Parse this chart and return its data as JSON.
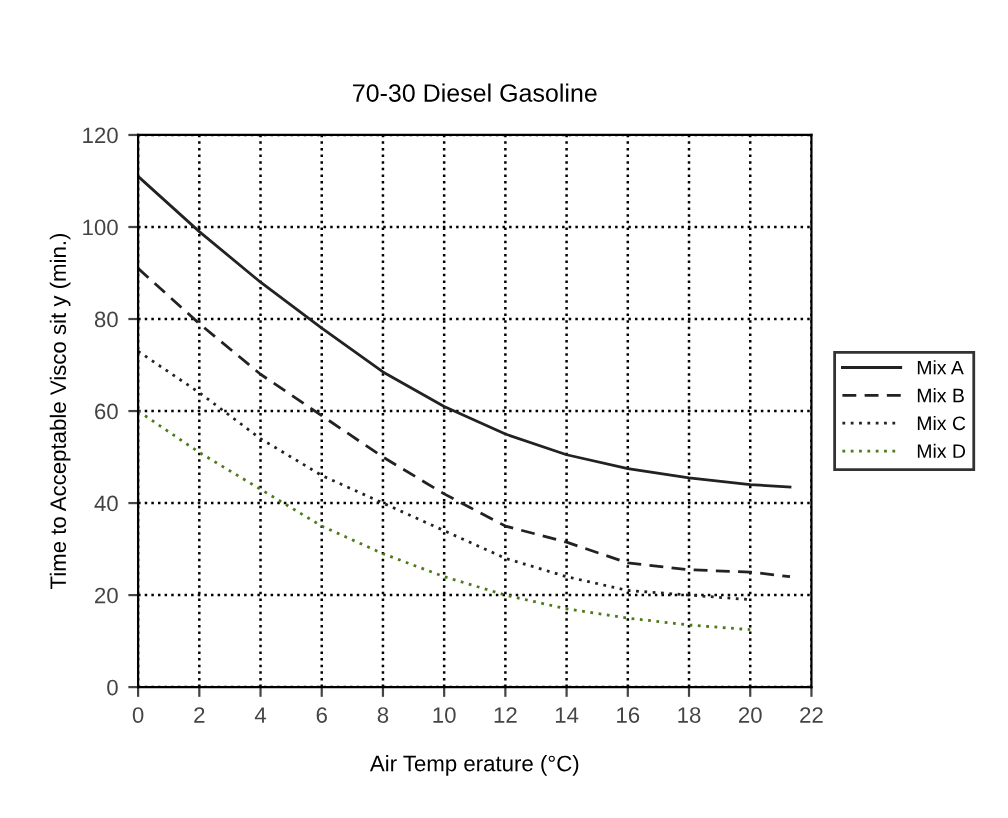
{
  "chart_data": {
    "type": "line",
    "title": "70-30 Diesel Gasoline",
    "xlabel": "Air Temp erature (°C)",
    "ylabel": "Time to Acceptable Visco sit y (min.)",
    "xlim": [
      0,
      22
    ],
    "xticks": [
      0,
      2,
      4,
      6,
      8,
      10,
      12,
      14,
      16,
      18,
      20,
      22
    ],
    "ylim": [
      0,
      120
    ],
    "yticks": [
      0,
      20,
      40,
      60,
      80,
      100,
      120
    ],
    "grid": true,
    "legend": "right",
    "series": [
      {
        "name": "Mix A",
        "color": "#222222",
        "line_style": "solid",
        "x": [
          0,
          2,
          4,
          6,
          8,
          10,
          12,
          14,
          16,
          18,
          20,
          21.3
        ],
        "values": [
          111,
          99,
          88,
          78,
          68.5,
          61,
          55,
          50.5,
          47.5,
          45.5,
          44,
          43.5
        ]
      },
      {
        "name": "Mix B",
        "color": "#222222",
        "line_style": "dashed",
        "x": [
          0,
          2,
          4,
          6,
          8,
          10,
          12,
          14,
          16,
          18,
          20,
          21.3
        ],
        "values": [
          91,
          79,
          68,
          59,
          50,
          42,
          35,
          31.5,
          27,
          25.5,
          25,
          24
        ]
      },
      {
        "name": "Mix C",
        "color": "#222222",
        "line_style": "dotted",
        "x": [
          0,
          2,
          4,
          6,
          8,
          10,
          12,
          14,
          16,
          18,
          20
        ],
        "values": [
          73,
          64,
          54,
          46,
          40,
          34,
          28,
          24,
          21,
          20,
          19
        ]
      },
      {
        "name": "Mix D",
        "color": "#4d7a1a",
        "line_style": "dotted",
        "x": [
          0,
          2,
          4,
          6,
          8,
          10,
          12,
          14,
          16,
          18,
          20
        ],
        "values": [
          60,
          51,
          43,
          35,
          29,
          24,
          20,
          17,
          15,
          13.5,
          12.5
        ]
      }
    ]
  }
}
